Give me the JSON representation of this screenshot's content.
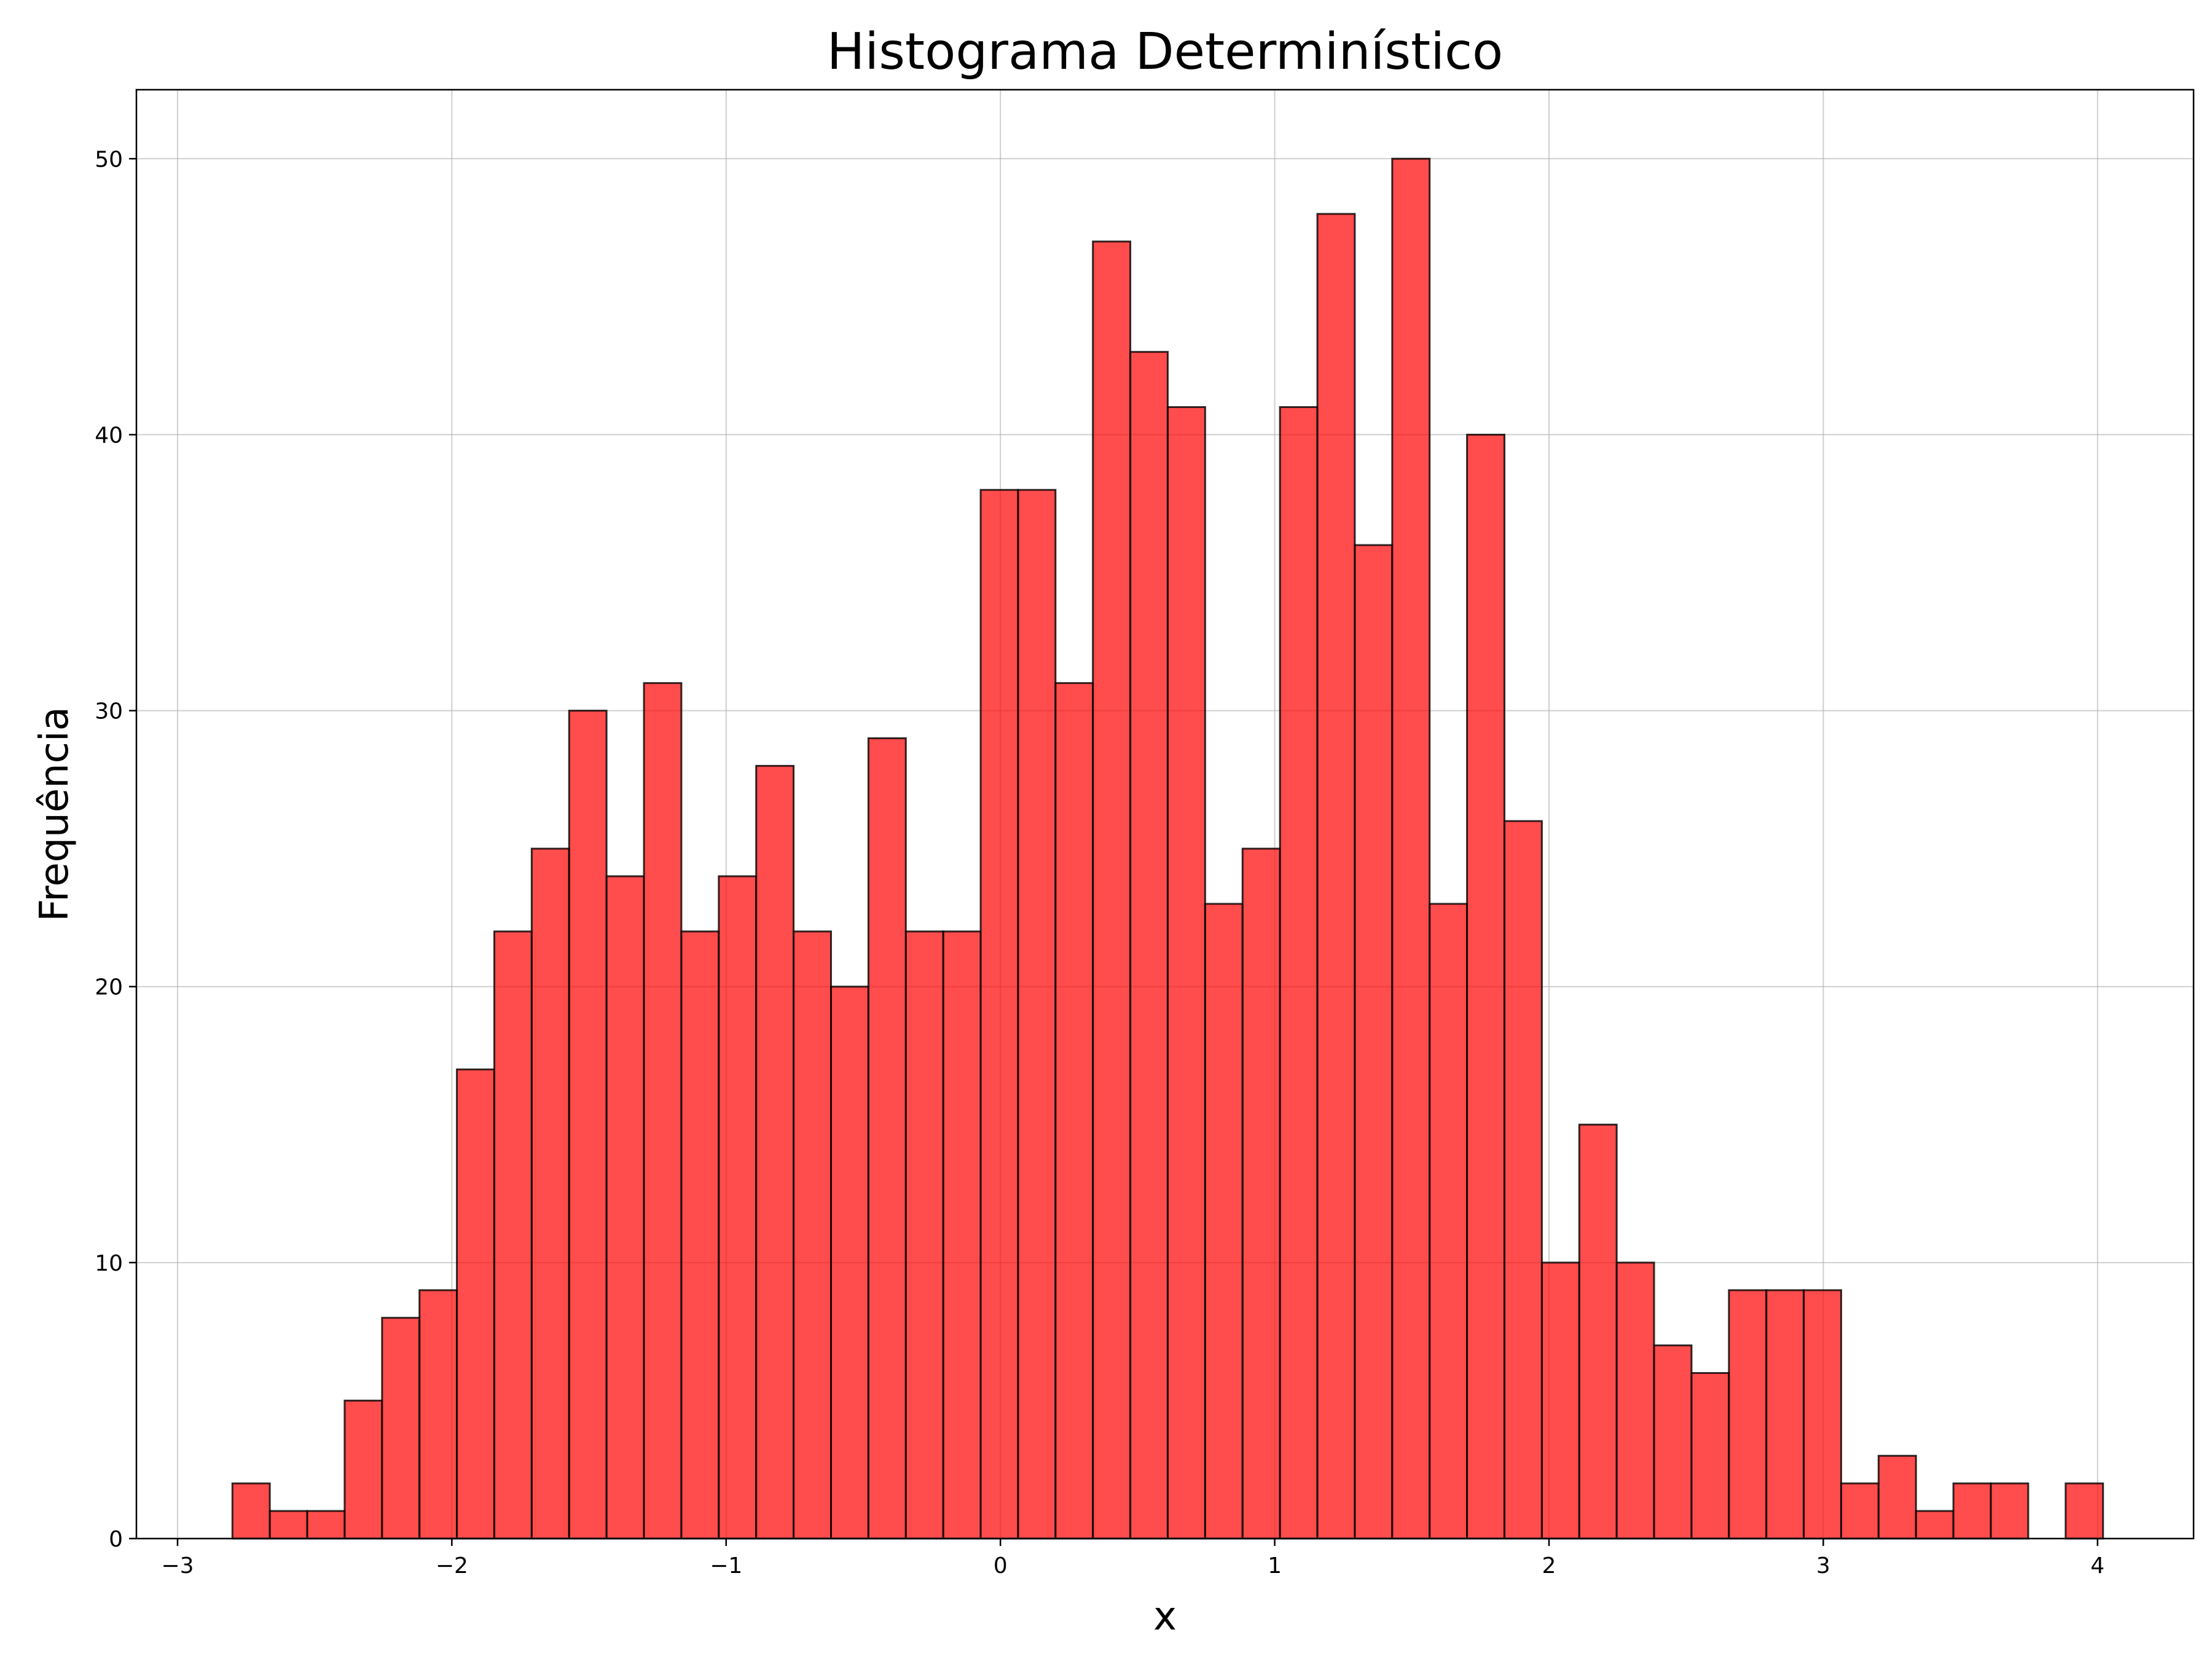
{
  "chart_data": {
    "type": "bar",
    "title": "Histograma Determinístico",
    "xlabel": "x",
    "ylabel": "Frequência",
    "xlim": [
      -3.15,
      4.35
    ],
    "ylim": [
      0,
      52.5
    ],
    "grid": true,
    "bar_color": "#ff0000",
    "edge_color": "#000000",
    "x_ticks": [
      -3,
      -2,
      -1,
      0,
      1,
      2,
      3,
      4
    ],
    "x_tick_labels": [
      "−3",
      "−2",
      "−1",
      "0",
      "1",
      "2",
      "3",
      "4"
    ],
    "y_ticks": [
      0,
      10,
      20,
      30,
      40,
      50
    ],
    "y_tick_labels": [
      "0",
      "10",
      "20",
      "30",
      "40",
      "50"
    ],
    "bin_start": -2.8,
    "bin_width": 0.1364,
    "values": [
      2,
      1,
      1,
      5,
      8,
      9,
      17,
      22,
      25,
      30,
      24,
      31,
      22,
      24,
      28,
      22,
      20,
      29,
      22,
      22,
      38,
      38,
      31,
      47,
      43,
      41,
      23,
      25,
      41,
      48,
      36,
      50,
      23,
      40,
      26,
      10,
      15,
      10,
      7,
      6,
      9,
      9,
      9,
      2,
      3,
      1,
      2,
      2,
      0,
      2
    ]
  }
}
